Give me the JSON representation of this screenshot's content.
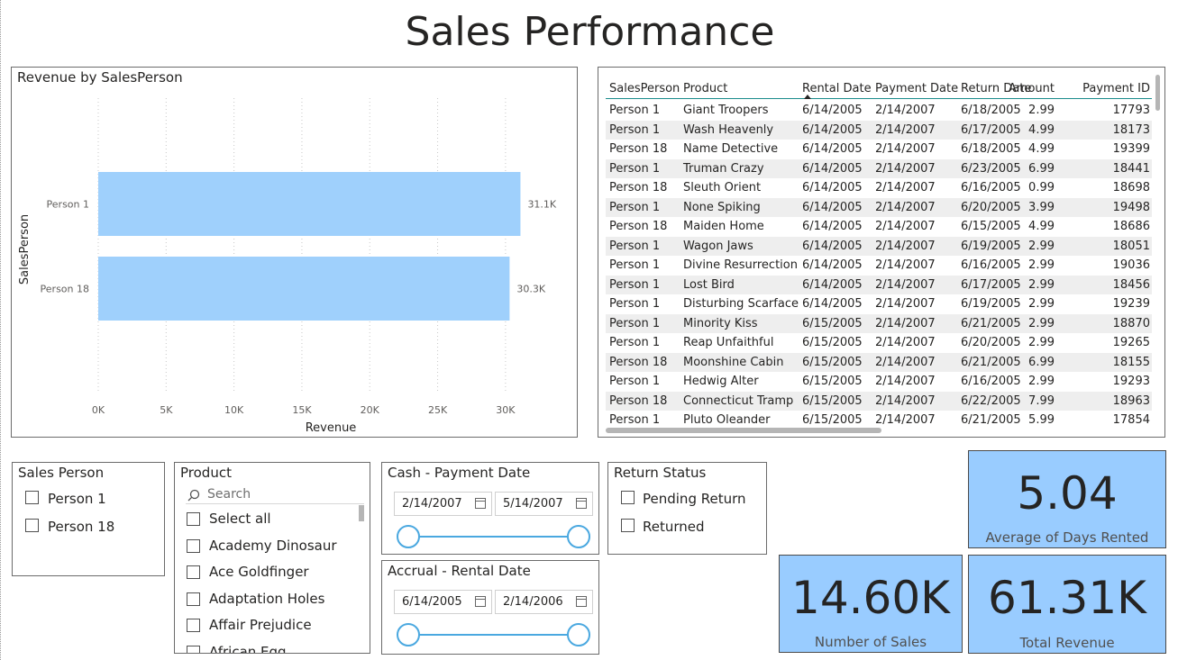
{
  "report_title": "Sales Performance",
  "chart_data": {
    "type": "bar",
    "orientation": "horizontal",
    "title": "Revenue by SalesPerson",
    "xlabel": "Revenue",
    "ylabel": "SalesPerson",
    "categories": [
      "Person 1",
      "Person 18"
    ],
    "values": [
      31100,
      30300
    ],
    "data_labels": [
      "31.1K",
      "30.3K"
    ],
    "xlim": [
      0,
      32000
    ],
    "xticks": [
      0,
      5000,
      10000,
      15000,
      20000,
      25000,
      30000
    ],
    "xtick_labels": [
      "0K",
      "5K",
      "10K",
      "15K",
      "20K",
      "25K",
      "30K"
    ],
    "grid": "vertical-dotted",
    "bar_color": "#9fd0fc"
  },
  "table": {
    "columns": [
      "SalesPerson",
      "Product",
      "Rental Date",
      "Payment Date",
      "Return Date",
      "Amount",
      "Payment ID"
    ],
    "sorted_column": "Rental Date",
    "rows": [
      [
        "Person 1",
        "Giant Troopers",
        "6/14/2005",
        "2/14/2007",
        "6/18/2005",
        "2.99",
        "17793"
      ],
      [
        "Person 1",
        "Wash Heavenly",
        "6/14/2005",
        "2/14/2007",
        "6/17/2005",
        "4.99",
        "18173"
      ],
      [
        "Person 18",
        "Name Detective",
        "6/14/2005",
        "2/14/2007",
        "6/18/2005",
        "4.99",
        "19399"
      ],
      [
        "Person 1",
        "Truman Crazy",
        "6/14/2005",
        "2/14/2007",
        "6/23/2005",
        "6.99",
        "18441"
      ],
      [
        "Person 18",
        "Sleuth Orient",
        "6/14/2005",
        "2/14/2007",
        "6/16/2005",
        "0.99",
        "18698"
      ],
      [
        "Person 1",
        "None Spiking",
        "6/14/2005",
        "2/14/2007",
        "6/20/2005",
        "3.99",
        "19498"
      ],
      [
        "Person 18",
        "Maiden Home",
        "6/14/2005",
        "2/14/2007",
        "6/15/2005",
        "4.99",
        "18686"
      ],
      [
        "Person 1",
        "Wagon Jaws",
        "6/14/2005",
        "2/14/2007",
        "6/19/2005",
        "2.99",
        "18051"
      ],
      [
        "Person 1",
        "Divine Resurrection",
        "6/14/2005",
        "2/14/2007",
        "6/16/2005",
        "2.99",
        "19036"
      ],
      [
        "Person 1",
        "Lost Bird",
        "6/14/2005",
        "2/14/2007",
        "6/17/2005",
        "2.99",
        "18456"
      ],
      [
        "Person 1",
        "Disturbing Scarface",
        "6/14/2005",
        "2/14/2007",
        "6/19/2005",
        "2.99",
        "19239"
      ],
      [
        "Person 1",
        "Minority Kiss",
        "6/15/2005",
        "2/14/2007",
        "6/21/2005",
        "2.99",
        "18870"
      ],
      [
        "Person 1",
        "Reap Unfaithful",
        "6/15/2005",
        "2/14/2007",
        "6/20/2005",
        "2.99",
        "19265"
      ],
      [
        "Person 18",
        "Moonshine Cabin",
        "6/15/2005",
        "2/14/2007",
        "6/21/2005",
        "6.99",
        "18155"
      ],
      [
        "Person 1",
        "Hedwig Alter",
        "6/15/2005",
        "2/14/2007",
        "6/16/2005",
        "2.99",
        "19293"
      ],
      [
        "Person 18",
        "Connecticut Tramp",
        "6/15/2005",
        "2/14/2007",
        "6/22/2005",
        "7.99",
        "18963"
      ],
      [
        "Person 1",
        "Pluto Oleander",
        "6/15/2005",
        "2/14/2007",
        "6/21/2005",
        "5.99",
        "17854"
      ]
    ]
  },
  "sales_person_slicer": {
    "title": "Sales Person",
    "items": [
      "Person 1",
      "Person 18"
    ]
  },
  "product_slicer": {
    "title": "Product",
    "search_placeholder": "Search",
    "items": [
      "Select all",
      "Academy Dinosaur",
      "Ace Goldfinger",
      "Adaptation Holes",
      "Affair Prejudice",
      "African Egg"
    ]
  },
  "cash_slicer": {
    "title": "Cash - Payment Date",
    "start": "2/14/2007",
    "end": "5/14/2007"
  },
  "accrual_slicer": {
    "title": "Accrual - Rental Date",
    "start": "6/14/2005",
    "end": "2/14/2006"
  },
  "return_slicer": {
    "title": "Return Status",
    "items": [
      "Pending Return",
      "Returned"
    ]
  },
  "cards": {
    "avg_days": {
      "value": "5.04",
      "label": "Average of Days Rented"
    },
    "num_sales": {
      "value": "14.60K",
      "label": "Number of Sales"
    },
    "total_revenue": {
      "value": "61.31K",
      "label": "Total Revenue"
    }
  }
}
